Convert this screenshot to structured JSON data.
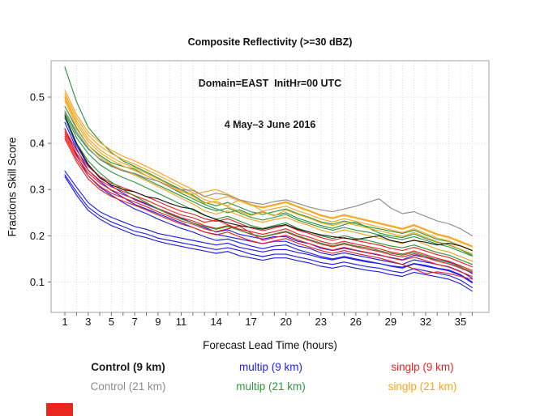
{
  "title": {
    "line1": "Composite Reflectivity (>=30 dBZ)",
    "line2": "Domain=EAST  InitHr=00 UTC",
    "line3": "4 May–3 June 2016"
  },
  "marker": {
    "color": "#e8261e"
  },
  "legend": {
    "items": [
      {
        "label": "Control (9 km)",
        "color": "#1a1a1a",
        "row": 0,
        "col": 0
      },
      {
        "label": "multip (9 km)",
        "color": "#2020ee",
        "row": 0,
        "col": 1
      },
      {
        "label": "singlp (9 km)",
        "color": "#ee2222",
        "row": 0,
        "col": 2
      },
      {
        "label": "Control (21 km)",
        "color": "#8c8c8c",
        "row": 1,
        "col": 0
      },
      {
        "label": "multip (21 km)",
        "color": "#2e963c",
        "row": 1,
        "col": 1
      },
      {
        "label": "singlp (21 km)",
        "color": "#f7a51e",
        "row": 1,
        "col": 2
      }
    ]
  },
  "chart_data": {
    "type": "line",
    "title": "Composite Reflectivity (>=30 dBZ)",
    "subtitle": "Domain=EAST  InitHr=00 UTC",
    "subtitle2": "4 May–3 June 2016",
    "xlabel": "Forecast Lead Time (hours)",
    "ylabel": "Fractions Skill Score",
    "x": [
      1,
      2,
      3,
      4,
      5,
      6,
      7,
      8,
      9,
      10,
      11,
      12,
      13,
      14,
      15,
      16,
      17,
      18,
      19,
      20,
      21,
      22,
      23,
      24,
      25,
      26,
      27,
      28,
      29,
      30,
      31,
      32,
      33,
      34,
      35,
      36
    ],
    "xtick_labels": [
      1,
      3,
      5,
      7,
      9,
      11,
      14,
      17,
      20,
      23,
      26,
      29,
      32,
      35
    ],
    "yticks": [
      0.1,
      0.2,
      0.3,
      0.4,
      0.5
    ],
    "ylim": [
      0.035,
      0.578
    ],
    "xlim": [
      0,
      37.5
    ],
    "grid": "dotted",
    "legend_position": "bottom",
    "series": [
      {
        "name": "multip (9 km) #1",
        "group": "multip_9km",
        "color": "#2020ee",
        "values": [
          0.455,
          0.395,
          0.352,
          0.328,
          0.308,
          0.292,
          0.278,
          0.268,
          0.258,
          0.248,
          0.238,
          0.228,
          0.218,
          0.208,
          0.213,
          0.203,
          0.198,
          0.193,
          0.198,
          0.198,
          0.188,
          0.183,
          0.173,
          0.168,
          0.173,
          0.168,
          0.163,
          0.158,
          0.153,
          0.148,
          0.158,
          0.153,
          0.148,
          0.143,
          0.133,
          0.118
        ]
      },
      {
        "name": "multip (9 km) #2",
        "group": "multip_9km",
        "color": "#2020ee",
        "values": [
          0.445,
          0.388,
          0.342,
          0.318,
          0.298,
          0.283,
          0.268,
          0.258,
          0.248,
          0.238,
          0.228,
          0.218,
          0.208,
          0.203,
          0.198,
          0.193,
          0.188,
          0.183,
          0.188,
          0.188,
          0.178,
          0.173,
          0.163,
          0.158,
          0.163,
          0.158,
          0.153,
          0.148,
          0.143,
          0.138,
          0.148,
          0.143,
          0.138,
          0.133,
          0.123,
          0.108
        ]
      },
      {
        "name": "multip (9 km) #3",
        "group": "multip_9km",
        "color": "#2020ee",
        "values": [
          0.432,
          0.375,
          0.33,
          0.305,
          0.288,
          0.272,
          0.258,
          0.248,
          0.236,
          0.226,
          0.216,
          0.208,
          0.198,
          0.19,
          0.193,
          0.185,
          0.178,
          0.172,
          0.178,
          0.18,
          0.17,
          0.163,
          0.155,
          0.15,
          0.155,
          0.15,
          0.145,
          0.14,
          0.135,
          0.132,
          0.14,
          0.136,
          0.13,
          0.126,
          0.116,
          0.1
        ]
      },
      {
        "name": "multip (9 km) #4",
        "group": "multip_9km",
        "color": "#2020ee",
        "values": [
          0.34,
          0.305,
          0.272,
          0.252,
          0.24,
          0.23,
          0.22,
          0.214,
          0.205,
          0.2,
          0.195,
          0.19,
          0.185,
          0.18,
          0.184,
          0.175,
          0.17,
          0.165,
          0.17,
          0.17,
          0.164,
          0.159,
          0.152,
          0.148,
          0.153,
          0.148,
          0.143,
          0.14,
          0.134,
          0.13,
          0.139,
          0.134,
          0.129,
          0.124,
          0.114,
          0.098
        ]
      },
      {
        "name": "multip (9 km) #5",
        "group": "multip_9km",
        "color": "#2020ee",
        "values": [
          0.332,
          0.295,
          0.262,
          0.243,
          0.23,
          0.22,
          0.21,
          0.204,
          0.195,
          0.19,
          0.185,
          0.18,
          0.175,
          0.17,
          0.174,
          0.168,
          0.16,
          0.155,
          0.16,
          0.16,
          0.154,
          0.149,
          0.142,
          0.138,
          0.143,
          0.138,
          0.133,
          0.13,
          0.124,
          0.12,
          0.129,
          0.124,
          0.119,
          0.114,
          0.104,
          0.088
        ]
      },
      {
        "name": "multip (9 km) #6",
        "group": "multip_9km",
        "color": "#2020ee",
        "values": [
          0.328,
          0.288,
          0.255,
          0.236,
          0.222,
          0.212,
          0.202,
          0.196,
          0.188,
          0.182,
          0.177,
          0.172,
          0.167,
          0.162,
          0.166,
          0.157,
          0.152,
          0.147,
          0.152,
          0.152,
          0.146,
          0.141,
          0.134,
          0.13,
          0.135,
          0.13,
          0.125,
          0.122,
          0.116,
          0.112,
          0.121,
          0.116,
          0.111,
          0.106,
          0.096,
          0.08
        ]
      },
      {
        "name": "singlp (9 km) #1",
        "group": "singlp_9km",
        "color": "#ee2222",
        "values": [
          0.43,
          0.385,
          0.35,
          0.328,
          0.314,
          0.304,
          0.295,
          0.285,
          0.274,
          0.263,
          0.253,
          0.247,
          0.237,
          0.231,
          0.237,
          0.227,
          0.217,
          0.211,
          0.217,
          0.223,
          0.212,
          0.205,
          0.196,
          0.19,
          0.196,
          0.19,
          0.185,
          0.18,
          0.173,
          0.168,
          0.175,
          0.167,
          0.159,
          0.153,
          0.143,
          0.133
        ]
      },
      {
        "name": "singlp (9 km) #2",
        "group": "singlp_9km",
        "color": "#ee2222",
        "values": [
          0.425,
          0.378,
          0.342,
          0.32,
          0.306,
          0.296,
          0.287,
          0.277,
          0.266,
          0.255,
          0.245,
          0.239,
          0.229,
          0.234,
          0.224,
          0.214,
          0.209,
          0.203,
          0.209,
          0.215,
          0.204,
          0.197,
          0.188,
          0.182,
          0.188,
          0.182,
          0.177,
          0.172,
          0.165,
          0.16,
          0.167,
          0.159,
          0.151,
          0.145,
          0.135,
          0.125
        ]
      },
      {
        "name": "singlp (9 km) #3",
        "group": "singlp_9km",
        "color": "#ee2222",
        "values": [
          0.42,
          0.372,
          0.336,
          0.314,
          0.299,
          0.289,
          0.28,
          0.27,
          0.259,
          0.249,
          0.239,
          0.232,
          0.222,
          0.216,
          0.222,
          0.212,
          0.203,
          0.197,
          0.203,
          0.208,
          0.198,
          0.19,
          0.182,
          0.176,
          0.182,
          0.176,
          0.171,
          0.166,
          0.159,
          0.154,
          0.161,
          0.153,
          0.145,
          0.139,
          0.13,
          0.12
        ]
      },
      {
        "name": "singlp (9 km) #4",
        "group": "singlp_9km",
        "color": "#ee2222",
        "values": [
          0.415,
          0.366,
          0.33,
          0.307,
          0.292,
          0.282,
          0.273,
          0.263,
          0.252,
          0.242,
          0.232,
          0.225,
          0.215,
          0.209,
          0.215,
          0.221,
          0.206,
          0.19,
          0.196,
          0.201,
          0.191,
          0.183,
          0.175,
          0.169,
          0.175,
          0.169,
          0.164,
          0.159,
          0.152,
          0.147,
          0.154,
          0.146,
          0.138,
          0.132,
          0.122,
          0.112
        ]
      },
      {
        "name": "singlp (9 km) #5",
        "group": "singlp_9km",
        "color": "#ee2222",
        "values": [
          0.41,
          0.36,
          0.323,
          0.3,
          0.285,
          0.275,
          0.266,
          0.256,
          0.245,
          0.235,
          0.225,
          0.218,
          0.208,
          0.202,
          0.208,
          0.198,
          0.189,
          0.183,
          0.189,
          0.194,
          0.184,
          0.176,
          0.168,
          0.162,
          0.168,
          0.162,
          0.157,
          0.152,
          0.145,
          0.138,
          0.128,
          0.118,
          0.122,
          0.118,
          0.112,
          0.106
        ]
      },
      {
        "name": "multip (21 km) #1",
        "group": "multip_21km",
        "color": "#2e963c",
        "values": [
          0.565,
          0.49,
          0.435,
          0.405,
          0.38,
          0.362,
          0.35,
          0.338,
          0.325,
          0.312,
          0.3,
          0.288,
          0.272,
          0.265,
          0.272,
          0.262,
          0.252,
          0.246,
          0.252,
          0.258,
          0.248,
          0.24,
          0.23,
          0.225,
          0.232,
          0.226,
          0.22,
          0.215,
          0.21,
          0.205,
          0.212,
          0.202,
          0.192,
          0.188,
          0.178,
          0.168
        ]
      },
      {
        "name": "multip (21 km) #2",
        "group": "multip_21km",
        "color": "#2e963c",
        "values": [
          0.48,
          0.432,
          0.396,
          0.374,
          0.358,
          0.35,
          0.344,
          0.33,
          0.318,
          0.305,
          0.292,
          0.28,
          0.268,
          0.258,
          0.25,
          0.256,
          0.246,
          0.252,
          0.244,
          0.25,
          0.238,
          0.23,
          0.222,
          0.216,
          0.224,
          0.23,
          0.218,
          0.206,
          0.2,
          0.196,
          0.204,
          0.194,
          0.186,
          0.18,
          0.17,
          0.158
        ]
      },
      {
        "name": "multip (21 km) #3",
        "group": "multip_21km",
        "color": "#2e963c",
        "values": [
          0.47,
          0.42,
          0.388,
          0.366,
          0.352,
          0.342,
          0.334,
          0.322,
          0.31,
          0.298,
          0.286,
          0.274,
          0.262,
          0.254,
          0.26,
          0.25,
          0.24,
          0.234,
          0.24,
          0.246,
          0.234,
          0.226,
          0.218,
          0.212,
          0.218,
          0.212,
          0.208,
          0.202,
          0.196,
          0.192,
          0.198,
          0.19,
          0.182,
          0.176,
          0.166,
          0.156
        ]
      },
      {
        "name": "multip (21 km) #4",
        "group": "multip_21km",
        "color": "#2e963c",
        "values": [
          0.465,
          0.412,
          0.378,
          0.354,
          0.338,
          0.326,
          0.316,
          0.304,
          0.292,
          0.28,
          0.268,
          0.256,
          0.244,
          0.236,
          0.242,
          0.232,
          0.222,
          0.216,
          0.222,
          0.228,
          0.216,
          0.208,
          0.2,
          0.194,
          0.2,
          0.194,
          0.19,
          0.184,
          0.178,
          0.174,
          0.18,
          0.172,
          0.164,
          0.158,
          0.148,
          0.138
        ]
      },
      {
        "name": "multip (21 km) #5",
        "group": "multip_21km",
        "color": "#2e963c",
        "values": [
          0.455,
          0.4,
          0.362,
          0.336,
          0.316,
          0.3,
          0.286,
          0.272,
          0.258,
          0.246,
          0.236,
          0.228,
          0.22,
          0.214,
          0.22,
          0.212,
          0.204,
          0.198,
          0.204,
          0.21,
          0.2,
          0.192,
          0.184,
          0.178,
          0.184,
          0.178,
          0.174,
          0.168,
          0.162,
          0.158,
          0.164,
          0.156,
          0.148,
          0.142,
          0.132,
          0.122
        ]
      },
      {
        "name": "singlp (21 km) #1",
        "group": "singlp_21km",
        "color": "#f7a51e",
        "values": [
          0.515,
          0.462,
          0.425,
          0.402,
          0.385,
          0.372,
          0.362,
          0.35,
          0.338,
          0.325,
          0.312,
          0.3,
          0.285,
          0.278,
          0.285,
          0.275,
          0.266,
          0.26,
          0.266,
          0.272,
          0.262,
          0.253,
          0.243,
          0.237,
          0.244,
          0.238,
          0.232,
          0.226,
          0.22,
          0.214,
          0.222,
          0.212,
          0.202,
          0.196,
          0.186,
          0.176
        ]
      },
      {
        "name": "singlp (21 km) #2",
        "group": "singlp_21km",
        "color": "#f7a51e",
        "values": [
          0.508,
          0.455,
          0.418,
          0.394,
          0.378,
          0.365,
          0.355,
          0.343,
          0.331,
          0.318,
          0.305,
          0.293,
          0.278,
          0.271,
          0.265,
          0.278,
          0.268,
          0.253,
          0.259,
          0.264,
          0.254,
          0.246,
          0.236,
          0.23,
          0.237,
          0.231,
          0.225,
          0.219,
          0.213,
          0.207,
          0.215,
          0.205,
          0.195,
          0.189,
          0.179,
          0.169
        ]
      },
      {
        "name": "singlp (21 km) #3",
        "group": "singlp_21km",
        "color": "#f7a51e",
        "values": [
          0.502,
          0.448,
          0.41,
          0.386,
          0.37,
          0.357,
          0.347,
          0.335,
          0.323,
          0.31,
          0.297,
          0.285,
          0.27,
          0.275,
          0.263,
          0.253,
          0.244,
          0.251,
          0.243,
          0.256,
          0.246,
          0.238,
          0.228,
          0.222,
          0.229,
          0.223,
          0.217,
          0.211,
          0.205,
          0.199,
          0.207,
          0.197,
          0.187,
          0.181,
          0.171,
          0.161
        ]
      },
      {
        "name": "singlp (21 km) #4",
        "group": "singlp_21km",
        "color": "#f7a51e",
        "values": [
          0.498,
          0.442,
          0.404,
          0.38,
          0.364,
          0.351,
          0.341,
          0.33,
          0.318,
          0.306,
          0.295,
          0.29,
          0.295,
          0.3,
          0.29,
          0.278,
          0.268,
          0.262,
          0.268,
          0.274,
          0.264,
          0.255,
          0.245,
          0.239,
          0.246,
          0.24,
          0.234,
          0.228,
          0.222,
          0.216,
          0.224,
          0.214,
          0.204,
          0.198,
          0.188,
          0.178
        ]
      },
      {
        "name": "singlp (21 km) #5",
        "group": "singlp_21km",
        "color": "#f7a51e",
        "values": [
          0.492,
          0.435,
          0.396,
          0.371,
          0.354,
          0.341,
          0.331,
          0.319,
          0.307,
          0.294,
          0.281,
          0.269,
          0.254,
          0.247,
          0.254,
          0.244,
          0.235,
          0.229,
          0.235,
          0.24,
          0.23,
          0.222,
          0.212,
          0.206,
          0.213,
          0.207,
          0.201,
          0.195,
          0.189,
          0.183,
          0.191,
          0.181,
          0.171,
          0.165,
          0.155,
          0.145
        ]
      },
      {
        "name": "Control (9 km)",
        "group": "control_9km",
        "color": "#1a1a1a",
        "values": [
          0.46,
          0.4,
          0.355,
          0.325,
          0.31,
          0.3,
          0.295,
          0.285,
          0.28,
          0.27,
          0.262,
          0.258,
          0.245,
          0.235,
          0.228,
          0.222,
          0.218,
          0.214,
          0.22,
          0.224,
          0.214,
          0.208,
          0.202,
          0.198,
          0.195,
          0.192,
          0.196,
          0.2,
          0.19,
          0.185,
          0.19,
          0.186,
          0.18,
          0.184,
          0.178,
          0.168
        ]
      },
      {
        "name": "Control (21 km)",
        "group": "control_21km",
        "color": "#8c8c8c",
        "values": [
          0.47,
          0.425,
          0.39,
          0.365,
          0.35,
          0.34,
          0.335,
          0.325,
          0.318,
          0.308,
          0.3,
          0.298,
          0.285,
          0.292,
          0.288,
          0.278,
          0.272,
          0.268,
          0.274,
          0.278,
          0.27,
          0.262,
          0.256,
          0.252,
          0.258,
          0.264,
          0.272,
          0.28,
          0.26,
          0.248,
          0.252,
          0.242,
          0.232,
          0.226,
          0.215,
          0.2
        ]
      }
    ]
  }
}
